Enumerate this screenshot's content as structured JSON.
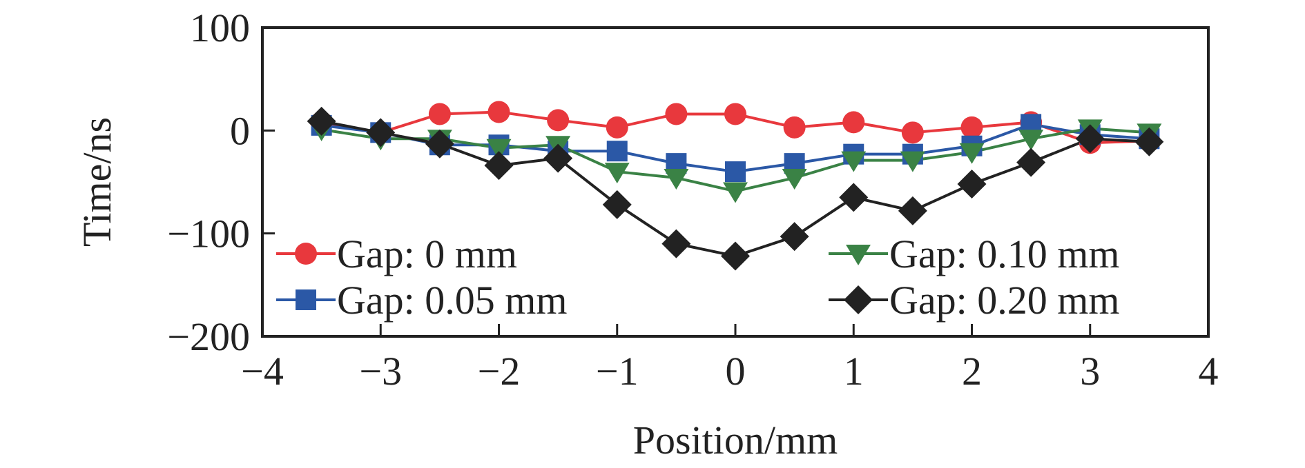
{
  "chart_data": {
    "type": "line",
    "title": "",
    "xlabel": "Position/mm",
    "ylabel": "Time/ns",
    "xlim": [
      -4,
      4
    ],
    "ylim": [
      -200,
      100
    ],
    "xticks": [
      -4,
      -3,
      -2,
      -1,
      0,
      1,
      2,
      3,
      4
    ],
    "xtick_labels": [
      "−4",
      "−3",
      "−2",
      "−1",
      "0",
      "1",
      "2",
      "3",
      "4"
    ],
    "yticks": [
      -200,
      -100,
      0,
      100
    ],
    "ytick_labels": [
      "−200",
      "−100",
      "0",
      "100"
    ],
    "grid": false,
    "legend_position": "bottom",
    "x": [
      -3.5,
      -3,
      -2.5,
      -2,
      -1.5,
      -1,
      -0.5,
      0,
      0.5,
      1,
      1.5,
      2,
      2.5,
      3,
      3.5
    ],
    "series": [
      {
        "name": "Gap: 0 mm",
        "marker": "circle",
        "color": "#e8383d",
        "values": [
          8,
          -2,
          16,
          18,
          10,
          3,
          16,
          16,
          3,
          8,
          -2,
          3,
          8,
          -12,
          -10
        ]
      },
      {
        "name": "Gap: 0.05 mm",
        "marker": "square",
        "color": "#2b58a6",
        "values": [
          5,
          -2,
          -14,
          -14,
          -20,
          -20,
          -32,
          -40,
          -32,
          -23,
          -23,
          -15,
          6,
          -4,
          -8
        ]
      },
      {
        "name": "Gap: 0.10 mm",
        "marker": "triangle-down",
        "color": "#3a8245",
        "values": [
          1,
          -8,
          -8,
          -17,
          -14,
          -40,
          -46,
          -59,
          -46,
          -29,
          -29,
          -21,
          -8,
          2,
          -2
        ]
      },
      {
        "name": "Gap: 0.20 mm",
        "marker": "diamond",
        "color": "#222222",
        "values": [
          9,
          -2,
          -13,
          -34,
          -27,
          -72,
          -110,
          -122,
          -103,
          -65,
          -78,
          -52,
          -31,
          -8,
          -11
        ]
      }
    ]
  }
}
